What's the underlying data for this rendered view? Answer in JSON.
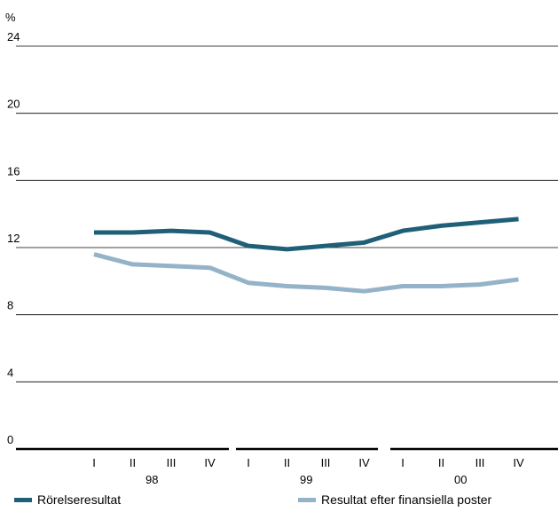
{
  "chart_data": {
    "type": "line",
    "ylabel": "%",
    "ylim": [
      0,
      24
    ],
    "yticks": [
      "0",
      "4",
      "8",
      "12",
      "16",
      "20",
      "24"
    ],
    "quarters": [
      "I",
      "II",
      "III",
      "IV",
      "I",
      "II",
      "III",
      "IV",
      "I",
      "II",
      "III",
      "IV"
    ],
    "years": [
      "98",
      "99",
      "00"
    ],
    "grid": true,
    "legend_position": "bottom",
    "series": [
      {
        "name": "Rörelseresultat",
        "color": "#1f5f78",
        "values": [
          12.9,
          12.9,
          13.0,
          12.9,
          12.1,
          11.9,
          12.1,
          12.3,
          13.0,
          13.3,
          13.5,
          13.7
        ]
      },
      {
        "name": "Resultat efter finansiella poster",
        "color": "#95b3c8",
        "values": [
          11.6,
          11.0,
          10.9,
          10.8,
          9.9,
          9.7,
          9.6,
          9.4,
          9.7,
          9.7,
          9.8,
          10.1
        ]
      }
    ]
  }
}
